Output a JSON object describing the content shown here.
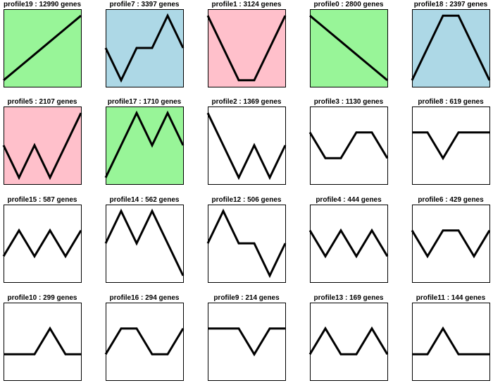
{
  "chart_data": {
    "type": "line",
    "title": "",
    "xlabel": "",
    "ylabel": "",
    "grid": false,
    "legend": "none",
    "panels": [
      {
        "title": "profile19 : 12990 genes",
        "color": "#98f598",
        "values": [
          1,
          2,
          3,
          4,
          5,
          6
        ]
      },
      {
        "title": "profile7 : 3397 genes",
        "color": "#add8e6",
        "values": [
          0,
          -1,
          0,
          0,
          1,
          0
        ]
      },
      {
        "title": "profile1 : 3124 genes",
        "color": "#ffc0cb",
        "values": [
          0,
          -1,
          -2,
          -2,
          -1,
          0
        ]
      },
      {
        "title": "profile0 : 2800 genes",
        "color": "#98f598",
        "values": [
          0,
          -1,
          -2,
          -3,
          -4,
          -5
        ]
      },
      {
        "title": "profile18 : 2397 genes",
        "color": "#add8e6",
        "values": [
          0,
          1,
          2,
          2,
          1,
          0
        ]
      },
      {
        "title": "profile5 : 2107 genes",
        "color": "#ffc0cb",
        "values": [
          0,
          -1,
          0,
          -1,
          0,
          1
        ]
      },
      {
        "title": "profile17 : 1710 genes",
        "color": "#98f598",
        "values": [
          0,
          1,
          2,
          1,
          2,
          1
        ]
      },
      {
        "title": "profile2 : 1369 genes",
        "color": "#ffffff",
        "values": [
          0,
          -1,
          -2,
          -1,
          -2,
          -1
        ]
      },
      {
        "title": "profile3 : 1130 genes",
        "color": "#ffffff",
        "values": [
          0,
          -1,
          -1,
          0,
          0,
          -1
        ]
      },
      {
        "title": "profile8 : 619 genes",
        "color": "#ffffff",
        "values": [
          0,
          0,
          -1,
          0,
          0,
          0
        ]
      },
      {
        "title": "profile15 : 587 genes",
        "color": "#ffffff",
        "values": [
          0,
          1,
          0,
          1,
          0,
          1
        ]
      },
      {
        "title": "profile14 : 562 genes",
        "color": "#ffffff",
        "values": [
          0,
          1,
          0,
          1,
          0,
          -1
        ]
      },
      {
        "title": "profile12 : 506 genes",
        "color": "#ffffff",
        "values": [
          0,
          1,
          0,
          0,
          -1,
          0
        ]
      },
      {
        "title": "profile4 : 444 genes",
        "color": "#ffffff",
        "values": [
          0,
          -1,
          0,
          -1,
          0,
          -1
        ]
      },
      {
        "title": "profile6 : 429 genes",
        "color": "#ffffff",
        "values": [
          0,
          -1,
          0,
          0,
          -1,
          0
        ]
      },
      {
        "title": "profile10 : 299 genes",
        "color": "#ffffff",
        "values": [
          0,
          0,
          0,
          1,
          0,
          0
        ]
      },
      {
        "title": "profile16 : 294 genes",
        "color": "#ffffff",
        "values": [
          0,
          1,
          1,
          0,
          0,
          1
        ]
      },
      {
        "title": "profile9 : 214 genes",
        "color": "#ffffff",
        "values": [
          0,
          0,
          0,
          -1,
          0,
          0
        ]
      },
      {
        "title": "profile13 : 169 genes",
        "color": "#ffffff",
        "values": [
          0,
          1,
          0,
          0,
          1,
          0
        ]
      },
      {
        "title": "profile11 : 144 genes",
        "color": "#ffffff",
        "values": [
          0,
          0,
          1,
          0,
          0,
          0
        ]
      }
    ]
  }
}
